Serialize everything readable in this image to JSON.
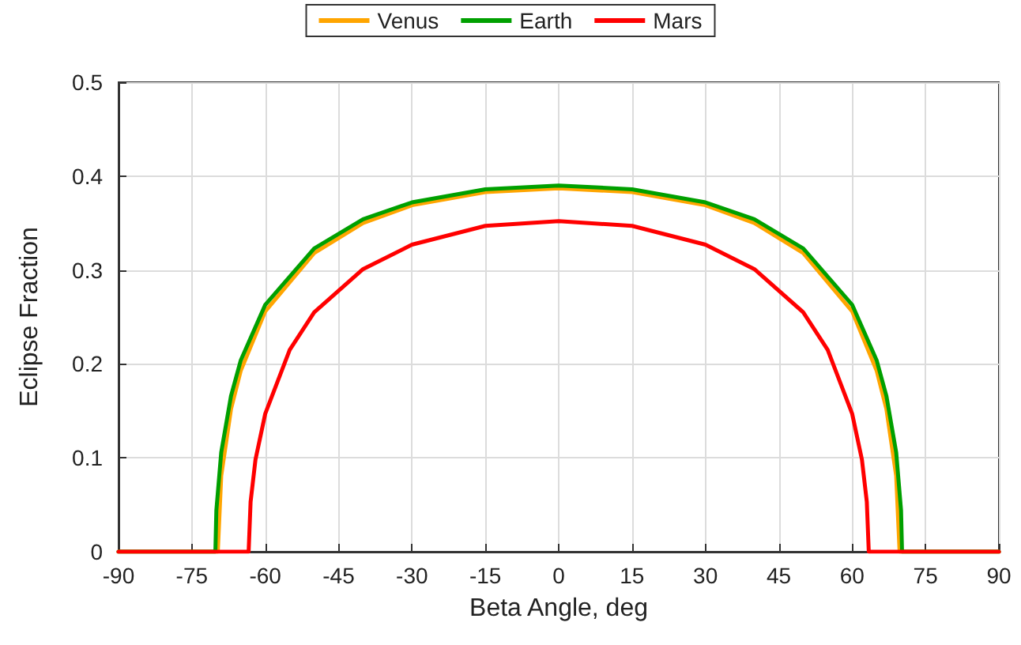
{
  "chart_data": {
    "type": "line",
    "xlabel": "Beta Angle, deg",
    "ylabel": "Eclipse Fraction",
    "xlim": [
      -90,
      90
    ],
    "xticks": [
      -90,
      -75,
      -60,
      -45,
      -30,
      -15,
      0,
      15,
      30,
      45,
      60,
      75,
      90
    ],
    "ylim": [
      0,
      0.5
    ],
    "yticks": [
      0,
      0.1,
      0.2,
      0.3,
      0.4,
      0.5
    ],
    "grid": true,
    "legend": "top",
    "marker": "none",
    "line_style": "solid",
    "series": [
      {
        "name": "Venus",
        "color": "#ffa500",
        "x": [
          -90,
          -69.7,
          -69,
          -67,
          -65,
          -60,
          -50,
          -40,
          -30,
          -15,
          0,
          15,
          30,
          40,
          50,
          60,
          65,
          67,
          69,
          69.7,
          90
        ],
        "values": [
          0,
          0,
          0.081,
          0.152,
          0.193,
          0.256,
          0.318,
          0.35,
          0.369,
          0.383,
          0.387,
          0.383,
          0.369,
          0.35,
          0.318,
          0.256,
          0.193,
          0.152,
          0.081,
          0,
          0
        ]
      },
      {
        "name": "Earth",
        "color": "#00a000",
        "x": [
          -90,
          -70.2,
          -70,
          -69,
          -67,
          -65,
          -60,
          -50,
          -40,
          -30,
          -15,
          0,
          15,
          30,
          40,
          50,
          60,
          65,
          67,
          69,
          70,
          70.2,
          90
        ],
        "values": [
          0,
          0,
          0.044,
          0.106,
          0.166,
          0.204,
          0.263,
          0.323,
          0.354,
          0.372,
          0.386,
          0.39,
          0.386,
          0.372,
          0.354,
          0.323,
          0.263,
          0.204,
          0.166,
          0.106,
          0.044,
          0,
          0
        ]
      },
      {
        "name": "Mars",
        "color": "#ff0000",
        "x": [
          -90,
          -63.4,
          -63,
          -62,
          -60,
          -55,
          -50,
          -40,
          -30,
          -15,
          0,
          15,
          30,
          40,
          50,
          55,
          60,
          62,
          63,
          63.4,
          90
        ],
        "values": [
          0,
          0,
          0.053,
          0.098,
          0.147,
          0.215,
          0.255,
          0.301,
          0.327,
          0.347,
          0.352,
          0.347,
          0.327,
          0.301,
          0.255,
          0.215,
          0.147,
          0.098,
          0.053,
          0,
          0
        ]
      }
    ]
  }
}
